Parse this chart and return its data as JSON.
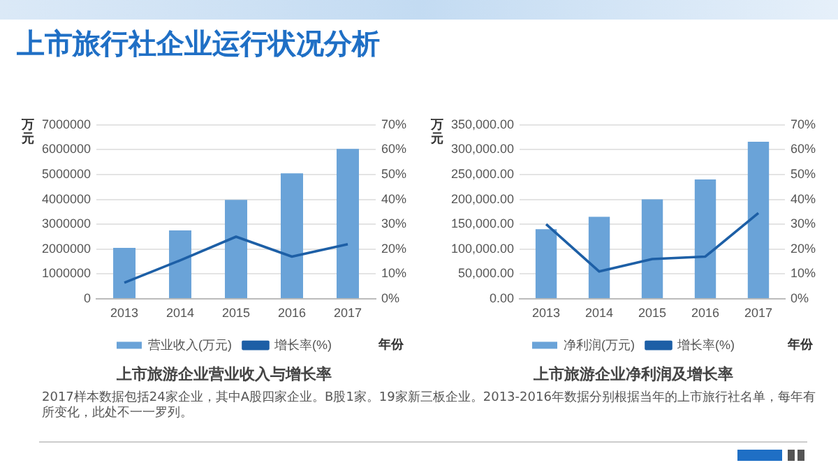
{
  "chart_data": [
    {
      "type": "bar",
      "title": "上市旅游企业营业收入与增长率",
      "xlabel": "年份",
      "ylabel": "万元",
      "annotations": [
        "上市旅行社企业运行状况分析"
      ],
      "categories": [
        "2013",
        "2014",
        "2015",
        "2016",
        "2017"
      ],
      "series": [
        {
          "name": "营业收入(万元)",
          "color": "#6aa3d8",
          "values": [
            2050000,
            2750000,
            3980000,
            5050000,
            6030000
          ]
        },
        {
          "name": "增长率(%)",
          "type": "line",
          "axis": "y2",
          "color": "#1d5fa6",
          "values": [
            6.5,
            15.5,
            25,
            17,
            22
          ]
        }
      ],
      "ylim": [
        0,
        7000000
      ],
      "yticks": [
        0,
        1000000,
        2000000,
        3000000,
        4000000,
        5000000,
        6000000,
        7000000
      ],
      "y2lim": [
        0,
        70
      ],
      "y2ticks": [
        {
          "value": 0,
          "label": "0%"
        },
        {
          "value": 10,
          "label": "10%"
        },
        {
          "value": 20,
          "label": "20%"
        },
        {
          "value": 30,
          "label": "30%"
        },
        {
          "value": 40,
          "label": "40%"
        },
        {
          "value": 50,
          "label": "50%"
        },
        {
          "value": 60,
          "label": "60%"
        },
        {
          "value": 70,
          "label": "70%"
        }
      ],
      "grid": "y",
      "legend": "bottom",
      "marker": "none"
    },
    {
      "type": "bar",
      "title": "上市旅游企业净利润及增长率",
      "xlabel": "年份",
      "ylabel": "万元",
      "annotations": [
        "2017样本数据包括24家企业，其中A股四家企业。B股1家。19家新三板企业。2013-2016年数据分别根据当年的上市旅行社名单，每年有所变化，此处不一一罗列。"
      ],
      "categories": [
        "2013",
        "2014",
        "2015",
        "2016",
        "2017"
      ],
      "series": [
        {
          "name": "净利润(万元)",
          "color": "#6aa3d8",
          "values": [
            140000,
            165000,
            200000,
            240000,
            316000
          ]
        },
        {
          "name": "增长率(%)",
          "type": "line",
          "axis": "y2",
          "color": "#1d5fa6",
          "values": [
            30,
            11,
            16,
            17,
            34.5
          ]
        }
      ],
      "ylim": [
        0,
        350000
      ],
      "yticks": [
        {
          "value": 0,
          "label": "0.00"
        },
        {
          "value": 50000,
          "label": "50,000.00"
        },
        {
          "value": 100000,
          "label": "100,000.00"
        },
        {
          "value": 150000,
          "label": "150,000.00"
        },
        {
          "value": 200000,
          "label": "200,000.00"
        },
        {
          "value": 250000,
          "label": "250,000.00"
        },
        {
          "value": 300000,
          "label": "300,000.00"
        },
        {
          "value": 350000,
          "label": "350,000.00"
        }
      ],
      "y2lim": [
        0,
        70
      ],
      "y2ticks": [
        {
          "value": 0,
          "label": "0%"
        },
        {
          "value": 10,
          "label": "10%"
        },
        {
          "value": 20,
          "label": "20%"
        },
        {
          "value": 30,
          "label": "30%"
        },
        {
          "value": 40,
          "label": "40%"
        },
        {
          "value": 50,
          "label": "50%"
        },
        {
          "value": 60,
          "label": "60%"
        },
        {
          "value": 70,
          "label": "70%"
        }
      ],
      "grid": "y",
      "legend": "bottom",
      "marker": "none"
    }
  ]
}
